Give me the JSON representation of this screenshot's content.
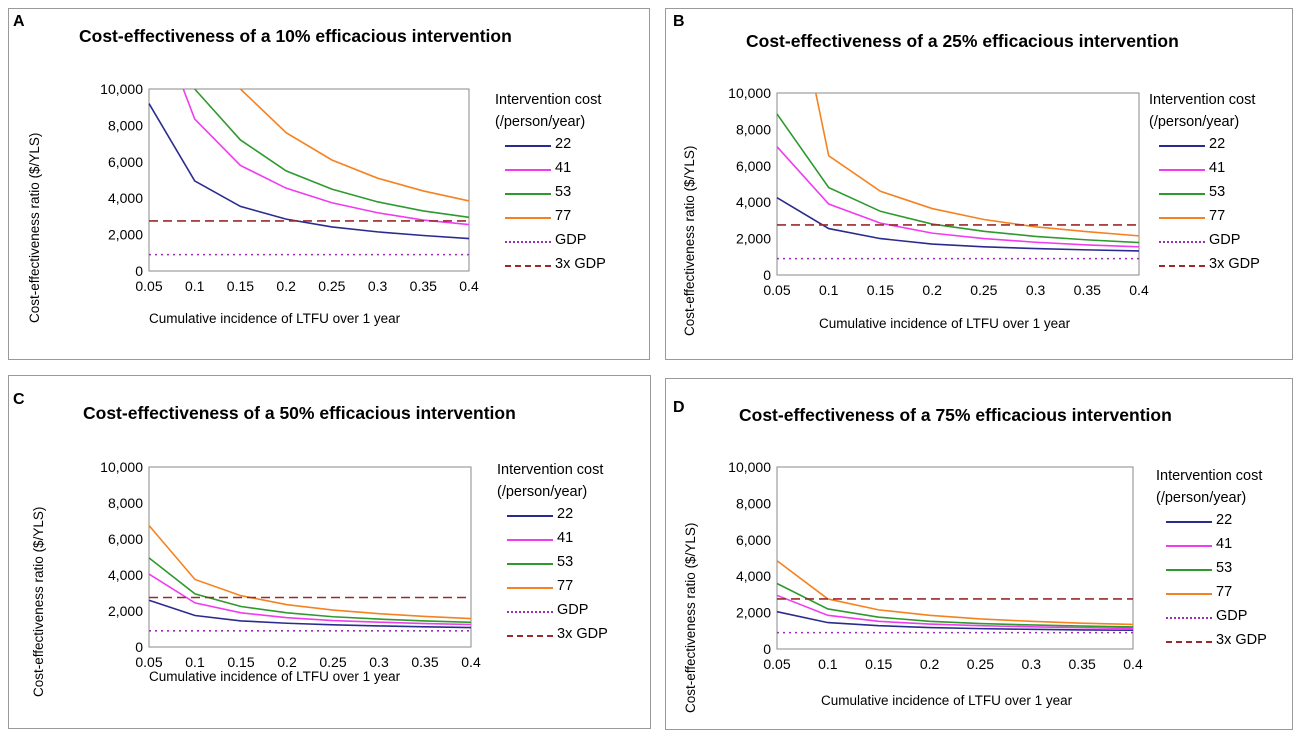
{
  "figure": {
    "legend_title": [
      "Intervention cost",
      "(/person/year)"
    ],
    "ylabel": "Cost-effectiveness ratio ($/YLS)",
    "xlabel": "Cumulative incidence of LTFU over 1 year",
    "series_styles": [
      {
        "name": "22",
        "color": "#2b2b8f",
        "dash": "solid"
      },
      {
        "name": "41",
        "color": "#f03cf0",
        "dash": "solid"
      },
      {
        "name": "53",
        "color": "#2e9a2e",
        "dash": "solid"
      },
      {
        "name": "77",
        "color": "#f58220",
        "dash": "solid"
      },
      {
        "name": "GDP",
        "color": "#9a2fb5",
        "dash": "dotted"
      },
      {
        "name": "3x GDP",
        "color": "#9c2a2a",
        "dash": "dashed"
      }
    ]
  },
  "chart_data": [
    {
      "panel": "A",
      "type": "line",
      "title": "Cost-effectiveness of a 10% efficacious intervention",
      "xlabel": "Cumulative incidence of LTFU over 1 year",
      "ylabel": "Cost-effectiveness ratio ($/YLS)",
      "x": [
        0.05,
        0.1,
        0.15,
        0.2,
        0.25,
        0.3,
        0.35,
        0.4
      ],
      "x_tick_labels": [
        "0.05",
        "0.1",
        "0.15",
        "0.2",
        "0.25",
        "0.3",
        "0.35",
        "0.4"
      ],
      "y_tick_labels": [
        "0",
        "2,000",
        "4,000",
        "6,000",
        "8,000",
        "10,000"
      ],
      "ylim": [
        0,
        10000
      ],
      "legend_position": "right",
      "series": [
        {
          "name": "22",
          "values": [
            9200,
            4950,
            3550,
            2850,
            2420,
            2150,
            1950,
            1780
          ]
        },
        {
          "name": "41",
          "values": [
            null,
            8350,
            5800,
            4550,
            3750,
            3200,
            2800,
            2550
          ]
        },
        {
          "name": "53",
          "values": [
            null,
            10000,
            7200,
            5500,
            4500,
            3800,
            3300,
            2950
          ]
        },
        {
          "name": "77",
          "values": [
            null,
            null,
            10000,
            7600,
            6100,
            5100,
            4400,
            3850
          ]
        },
        {
          "name": "GDP",
          "values": [
            900,
            900,
            900,
            900,
            900,
            900,
            900,
            900
          ]
        },
        {
          "name": "3x GDP",
          "values": [
            2750,
            2750,
            2750,
            2750,
            2750,
            2750,
            2750,
            2750
          ]
        }
      ],
      "segments_from_edge": [
        {
          "series": "41",
          "from": [
            0.088,
            10000
          ],
          "to": [
            0.1,
            8350
          ]
        },
        {
          "series": "53",
          "from": [
            0.1,
            10000
          ],
          "to": [
            0.1,
            10000
          ]
        },
        {
          "series": "77",
          "from": [
            0.15,
            10000
          ],
          "to": [
            0.15,
            10000
          ]
        }
      ]
    },
    {
      "panel": "B",
      "type": "line",
      "title": "Cost-effectiveness of a 25% efficacious intervention",
      "xlabel": "Cumulative incidence of LTFU over 1 year",
      "ylabel": "Cost-effectiveness ratio ($/YLS)",
      "x": [
        0.05,
        0.1,
        0.15,
        0.2,
        0.25,
        0.3,
        0.35,
        0.4
      ],
      "x_tick_labels": [
        "0.05",
        "0.1",
        "0.15",
        "0.2",
        "0.25",
        "0.3",
        "0.35",
        "0.4"
      ],
      "y_tick_labels": [
        "0",
        "2,000",
        "4,000",
        "6,000",
        "8,000",
        "10,000"
      ],
      "ylim": [
        0,
        10000
      ],
      "legend_position": "right",
      "series": [
        {
          "name": "22",
          "values": [
            4250,
            2550,
            2000,
            1700,
            1550,
            1450,
            1380,
            1320
          ]
        },
        {
          "name": "41",
          "values": [
            7050,
            3900,
            2850,
            2300,
            2000,
            1800,
            1650,
            1550
          ]
        },
        {
          "name": "53",
          "values": [
            8850,
            4800,
            3500,
            2800,
            2400,
            2120,
            1930,
            1780
          ]
        },
        {
          "name": "77",
          "values": [
            null,
            6550,
            4600,
            3650,
            3050,
            2650,
            2380,
            2150
          ]
        },
        {
          "name": "GDP",
          "values": [
            900,
            900,
            900,
            900,
            900,
            900,
            900,
            900
          ]
        },
        {
          "name": "3x GDP",
          "values": [
            2750,
            2750,
            2750,
            2750,
            2750,
            2750,
            2750,
            2750
          ]
        }
      ]
    },
    {
      "panel": "C",
      "type": "line",
      "title": "Cost-effectiveness of a 50% efficacious intervention",
      "xlabel": "Cumulative incidence of LTFU over 1 year",
      "ylabel": "Cost-effectiveness ratio ($/YLS)",
      "x": [
        0.05,
        0.1,
        0.15,
        0.2,
        0.25,
        0.3,
        0.35,
        0.4
      ],
      "x_tick_labels": [
        "0.05",
        "0.1",
        "0.15",
        "0.2",
        "0.25",
        "0.3",
        "0.35",
        "0.4"
      ],
      "y_tick_labels": [
        "0",
        "2,000",
        "4,000",
        "6,000",
        "8,000",
        "10,000"
      ],
      "ylim": [
        0,
        10000
      ],
      "legend_position": "right",
      "series": [
        {
          "name": "22",
          "values": [
            2600,
            1750,
            1450,
            1320,
            1230,
            1170,
            1120,
            1080
          ]
        },
        {
          "name": "41",
          "values": [
            4050,
            2450,
            1900,
            1630,
            1470,
            1380,
            1300,
            1250
          ]
        },
        {
          "name": "53",
          "values": [
            4950,
            2950,
            2250,
            1900,
            1680,
            1550,
            1450,
            1370
          ]
        },
        {
          "name": "77",
          "values": [
            6750,
            3750,
            2850,
            2350,
            2050,
            1850,
            1700,
            1580
          ]
        },
        {
          "name": "GDP",
          "values": [
            900,
            900,
            900,
            900,
            900,
            900,
            900,
            900
          ]
        },
        {
          "name": "3x GDP",
          "values": [
            2750,
            2750,
            2750,
            2750,
            2750,
            2750,
            2750,
            2750
          ]
        }
      ]
    },
    {
      "panel": "D",
      "type": "line",
      "title": "Cost-effectiveness of a 75% efficacious intervention",
      "xlabel": "Cumulative incidence of LTFU over 1 year",
      "ylabel": "Cost-effectiveness ratio ($/YLS)",
      "x": [
        0.05,
        0.1,
        0.15,
        0.2,
        0.25,
        0.3,
        0.35,
        0.4
      ],
      "x_tick_labels": [
        "0.05",
        "0.1",
        "0.15",
        "0.2",
        "0.25",
        "0.3",
        "0.35",
        "0.4"
      ],
      "y_tick_labels": [
        "0",
        "2,000",
        "4,000",
        "6,000",
        "8,000",
        "10,000"
      ],
      "ylim": [
        0,
        10000
      ],
      "legend_position": "right",
      "series": [
        {
          "name": "22",
          "values": [
            2050,
            1450,
            1280,
            1180,
            1120,
            1080,
            1050,
            1030
          ]
        },
        {
          "name": "41",
          "values": [
            2950,
            1850,
            1520,
            1370,
            1280,
            1220,
            1170,
            1130
          ]
        },
        {
          "name": "53",
          "values": [
            3600,
            2200,
            1750,
            1520,
            1400,
            1320,
            1260,
            1210
          ]
        },
        {
          "name": "77",
          "values": [
            4850,
            2750,
            2150,
            1850,
            1650,
            1520,
            1420,
            1350
          ]
        },
        {
          "name": "GDP",
          "values": [
            900,
            900,
            900,
            900,
            900,
            900,
            900,
            900
          ]
        },
        {
          "name": "3x GDP",
          "values": [
            2750,
            2750,
            2750,
            2750,
            2750,
            2750,
            2750,
            2750
          ]
        }
      ]
    }
  ]
}
